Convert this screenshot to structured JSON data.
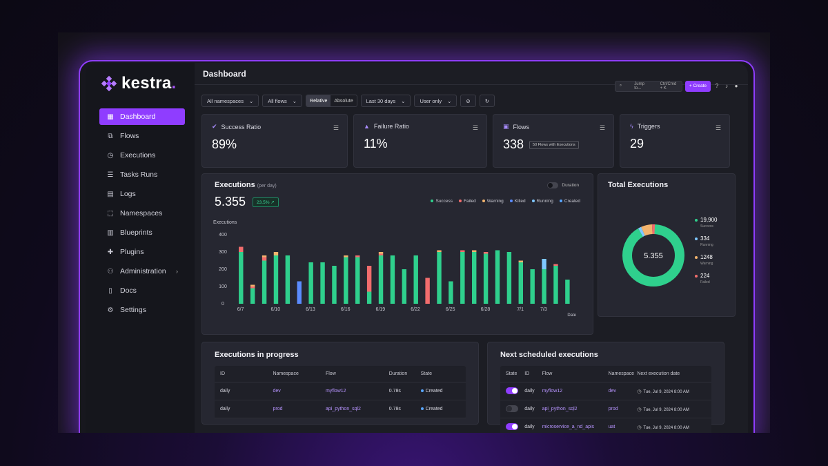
{
  "brand": {
    "name": "kestra",
    "dot": "."
  },
  "sidebar": {
    "items": [
      {
        "label": "Dashboard",
        "icon": "dashboard-icon",
        "active": true
      },
      {
        "label": "Flows",
        "icon": "flows-icon"
      },
      {
        "label": "Executions",
        "icon": "executions-icon"
      },
      {
        "label": "Tasks Runs",
        "icon": "task-runs-icon"
      },
      {
        "label": "Logs",
        "icon": "logs-icon"
      },
      {
        "label": "Namespaces",
        "icon": "namespaces-icon"
      },
      {
        "label": "Blueprints",
        "icon": "blueprints-icon"
      },
      {
        "label": "Plugins",
        "icon": "plugins-icon"
      },
      {
        "label": "Administration",
        "icon": "administration-icon",
        "has_submenu": true
      },
      {
        "label": "Docs",
        "icon": "docs-icon"
      },
      {
        "label": "Settings",
        "icon": "settings-icon"
      }
    ]
  },
  "header": {
    "title": "Dashboard",
    "jump_label": "Jump to...",
    "jump_shortcut": "Ctrl/Cmd + K",
    "create_label": "+ Create"
  },
  "filters": {
    "namespace": "All namespaces",
    "flows": "All flows",
    "relative": "Relative",
    "absolute": "Absolute",
    "range": "Last 30 days",
    "user_scope": "User only"
  },
  "cards": {
    "success": {
      "label": "Success Ratio",
      "value": "89%"
    },
    "failure": {
      "label": "Failure Ratio",
      "value": "11%"
    },
    "flows": {
      "label": "Flows",
      "value": "338",
      "badge": "50 Flows with Executions"
    },
    "triggers": {
      "label": "Triggers",
      "value": "29"
    }
  },
  "executions_panel": {
    "title": "Executions",
    "subtitle": "(per day)",
    "total": "5.355",
    "change": "23.5%",
    "toggle_label": "Duration",
    "legend": [
      {
        "name": "Success",
        "color": "#2fd08d"
      },
      {
        "name": "Failed",
        "color": "#f26d6d"
      },
      {
        "name": "Warning",
        "color": "#f2b36d"
      },
      {
        "name": "Killed",
        "color": "#5b8cff"
      },
      {
        "name": "Running",
        "color": "#7ec8ff"
      },
      {
        "name": "Created",
        "color": "#58a6ff"
      }
    ]
  },
  "chart_data": {
    "type": "bar",
    "ylabel": "Executions",
    "xlabel": "Date",
    "ylim": [
      0,
      400
    ],
    "yticks": [
      0,
      100,
      200,
      300,
      400
    ],
    "x_ticks": [
      "6/7",
      "6/10",
      "6/13",
      "6/16",
      "6/19",
      "6/22",
      "6/25",
      "6/28",
      "7/1",
      "7/3"
    ],
    "categories": [
      "6/7",
      "6/8",
      "6/9",
      "6/10",
      "6/11",
      "6/12",
      "6/13",
      "6/14",
      "6/15",
      "6/16",
      "6/17",
      "6/18",
      "6/19",
      "6/20",
      "6/21",
      "6/22",
      "6/23",
      "6/24",
      "6/25",
      "6/26",
      "6/27",
      "6/28",
      "6/29",
      "6/30",
      "7/1",
      "7/2",
      "7/3",
      "7/4",
      "7/5"
    ],
    "series": [
      {
        "name": "Success",
        "values": [
          300,
          90,
          250,
          280,
          280,
          0,
          240,
          240,
          220,
          270,
          270,
          70,
          280,
          280,
          200,
          280,
          0,
          300,
          130,
          300,
          300,
          290,
          310,
          300,
          240,
          200,
          200,
          220,
          140
        ]
      },
      {
        "name": "Failed",
        "values": [
          30,
          10,
          20,
          0,
          0,
          0,
          0,
          0,
          0,
          0,
          10,
          150,
          10,
          0,
          0,
          0,
          150,
          0,
          0,
          10,
          0,
          10,
          0,
          0,
          0,
          0,
          0,
          10,
          0
        ]
      },
      {
        "name": "Warning",
        "values": [
          0,
          10,
          10,
          20,
          0,
          0,
          0,
          0,
          0,
          10,
          0,
          0,
          10,
          0,
          0,
          0,
          0,
          10,
          0,
          0,
          10,
          0,
          0,
          0,
          10,
          0,
          0,
          0,
          0
        ]
      },
      {
        "name": "Killed",
        "values": [
          0,
          0,
          0,
          0,
          0,
          130,
          0,
          0,
          0,
          0,
          0,
          0,
          0,
          0,
          0,
          0,
          0,
          0,
          0,
          0,
          0,
          0,
          0,
          0,
          0,
          0,
          0,
          0,
          0
        ]
      },
      {
        "name": "Running",
        "values": [
          0,
          0,
          0,
          0,
          0,
          0,
          0,
          0,
          0,
          0,
          0,
          0,
          0,
          0,
          0,
          0,
          0,
          0,
          0,
          0,
          0,
          0,
          0,
          0,
          0,
          0,
          60,
          0,
          0
        ]
      }
    ]
  },
  "total_panel": {
    "title": "Total Executions",
    "center": "5.355",
    "items": [
      {
        "value": "19,900",
        "label": "Success",
        "color": "#2fd08d"
      },
      {
        "value": "334",
        "label": "Running",
        "color": "#7ec8ff"
      },
      {
        "value": "1248",
        "label": "Warning",
        "color": "#f2b36d"
      },
      {
        "value": "224",
        "label": "Failed",
        "color": "#f26d6d"
      }
    ]
  },
  "in_progress": {
    "title": "Executions in progress",
    "columns": [
      "ID",
      "Namespace",
      "Flow",
      "Duration",
      "State"
    ],
    "rows": [
      {
        "id": "daily",
        "namespace": "dev",
        "flow": "myflow12",
        "duration": "0.78s",
        "state": "Created"
      },
      {
        "id": "daily",
        "namespace": "prod",
        "flow": "api_python_sql2",
        "duration": "0.78s",
        "state": "Created"
      }
    ]
  },
  "scheduled": {
    "title": "Next scheduled executions",
    "columns": [
      "State",
      "ID",
      "Flow",
      "Namespace",
      "Next execution date"
    ],
    "rows": [
      {
        "on": true,
        "id": "daily",
        "flow": "myflow12",
        "namespace": "dev",
        "date": "Tue, Jul 9, 2024 8:00 AM"
      },
      {
        "on": false,
        "id": "daily",
        "flow": "api_python_sql2",
        "namespace": "prod",
        "date": "Tue, Jul 9, 2024 8:00 AM"
      },
      {
        "on": true,
        "id": "daily",
        "flow": "microservice_a_nd_apis",
        "namespace": "uat",
        "date": "Tue, Jul 9, 2024 8:00 AM"
      }
    ]
  }
}
